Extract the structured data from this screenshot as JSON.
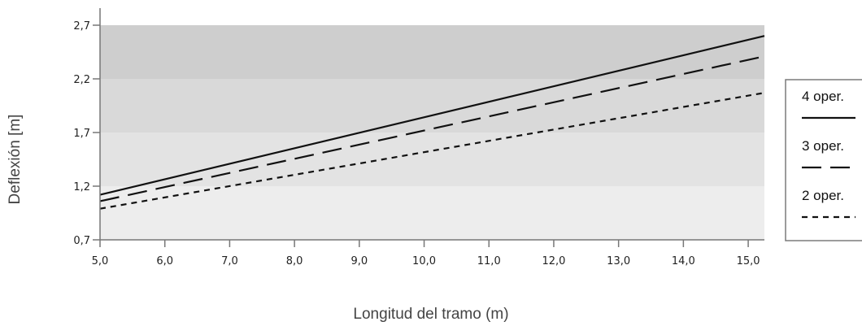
{
  "chart_data": {
    "type": "line",
    "xlabel": "Longitud del tramo (m)",
    "ylabel": "Deflexión [m]",
    "xlim": [
      5.0,
      15.25
    ],
    "ylim": [
      0.7,
      2.7
    ],
    "x_ticks": [
      "5,0",
      "6,0",
      "7,0",
      "8,0",
      "9,0",
      "10,0",
      "11,0",
      "12,0",
      "13,0",
      "14,0",
      "15,0"
    ],
    "y_ticks": [
      "0,7",
      "1,2",
      "1,7",
      "2,2",
      "2,7"
    ],
    "grid": false,
    "legend_position": "right",
    "bands": [
      {
        "from": 0.7,
        "to": 1.2,
        "color": "#ededed"
      },
      {
        "from": 1.2,
        "to": 1.7,
        "color": "#e3e3e3"
      },
      {
        "from": 1.7,
        "to": 2.2,
        "color": "#d9d9d9"
      },
      {
        "from": 2.2,
        "to": 2.7,
        "color": "#cecece"
      }
    ],
    "series": [
      {
        "name": "4 oper.",
        "style": "solid",
        "x": [
          5.0,
          15.25
        ],
        "y": [
          1.12,
          2.6
        ]
      },
      {
        "name": "3 oper.",
        "style": "long-dash",
        "x": [
          5.0,
          15.25
        ],
        "y": [
          1.06,
          2.41
        ]
      },
      {
        "name": "2 oper.",
        "style": "short-dash",
        "x": [
          5.0,
          15.25
        ],
        "y": [
          0.99,
          2.07
        ]
      }
    ]
  }
}
